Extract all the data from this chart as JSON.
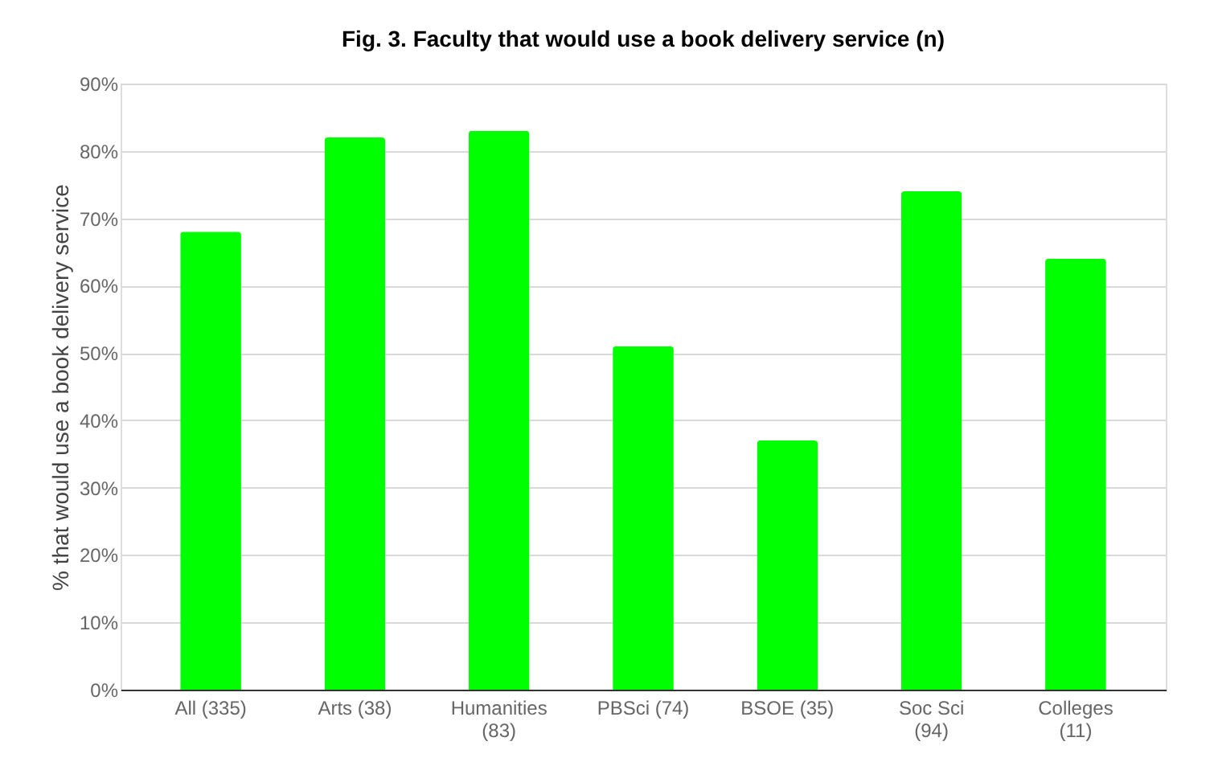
{
  "chart_data": {
    "type": "bar",
    "title": "Fig. 3. Faculty that would use a  book delivery service (n)",
    "ylabel": "% that would use a book delivery service",
    "categories": [
      "All (335)",
      "Arts (38)",
      "Humanities (83)",
      "PBSci (74)",
      "BSOE (35)",
      "Soc Sci (94)",
      "Colleges (11)"
    ],
    "values": [
      68,
      82,
      83,
      51,
      37,
      74,
      64
    ],
    "color": "#00ff00",
    "ylim": [
      0,
      90
    ],
    "yticks": [
      {
        "value": 0,
        "label": "0%"
      },
      {
        "value": 10,
        "label": "10%"
      },
      {
        "value": 20,
        "label": "20%"
      },
      {
        "value": 30,
        "label": "30%"
      },
      {
        "value": 40,
        "label": "40%"
      },
      {
        "value": 50,
        "label": "50%"
      },
      {
        "value": 60,
        "label": "60%"
      },
      {
        "value": 70,
        "label": "70%"
      },
      {
        "value": 80,
        "label": "80%"
      },
      {
        "value": 90,
        "label": "90%"
      }
    ],
    "grid": "y"
  }
}
